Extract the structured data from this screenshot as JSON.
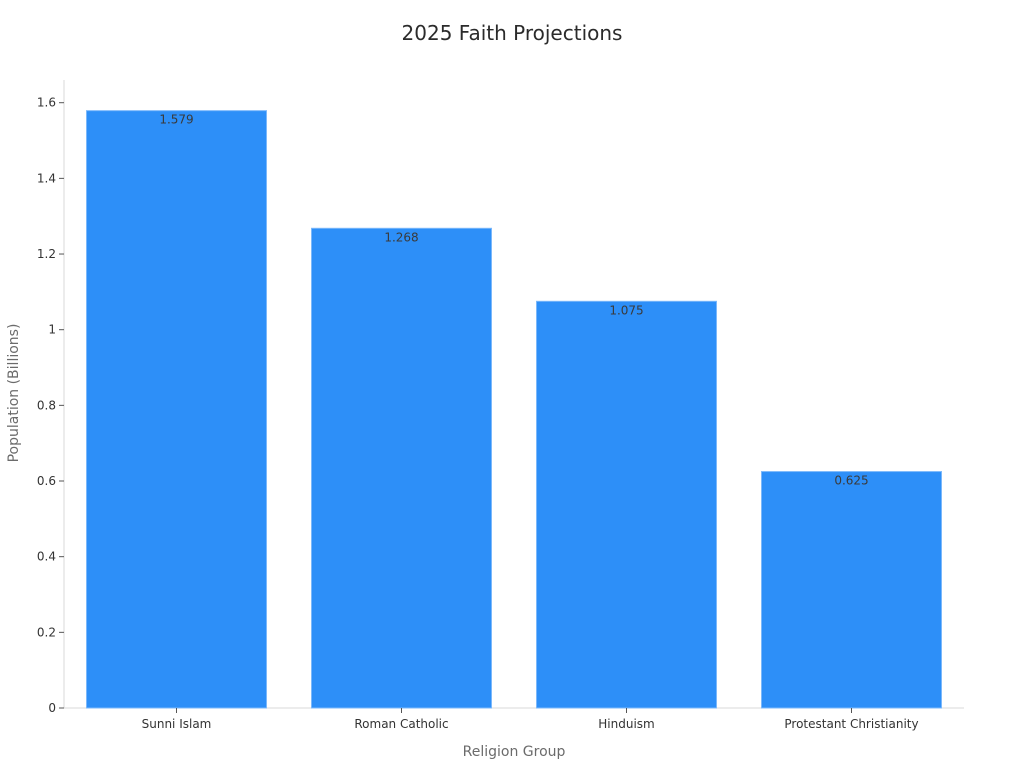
{
  "chart_data": {
    "type": "bar",
    "title": "2025 Faith Projections",
    "xlabel": "Religion Group",
    "ylabel": "Population (Billions)",
    "categories": [
      "Sunni Islam",
      "Roman Catholic",
      "Hinduism",
      "Protestant Christianity"
    ],
    "values": [
      1.579,
      1.268,
      1.075,
      0.625
    ],
    "data_labels": [
      "1.579",
      "1.268",
      "1.075",
      "0.625"
    ],
    "ylim": [
      0,
      1.66
    ],
    "yticks": [
      0,
      0.2,
      0.4,
      0.6,
      0.8,
      1,
      1.2,
      1.4,
      1.6
    ],
    "ytick_labels": [
      "0",
      "0.2",
      "0.4",
      "0.6",
      "0.8",
      "1",
      "1.2",
      "1.4",
      "1.6"
    ],
    "grid": false,
    "legend": "none",
    "colors": {
      "bar": "#2d8ff8",
      "bar_edge": "#7bb8fb"
    }
  }
}
